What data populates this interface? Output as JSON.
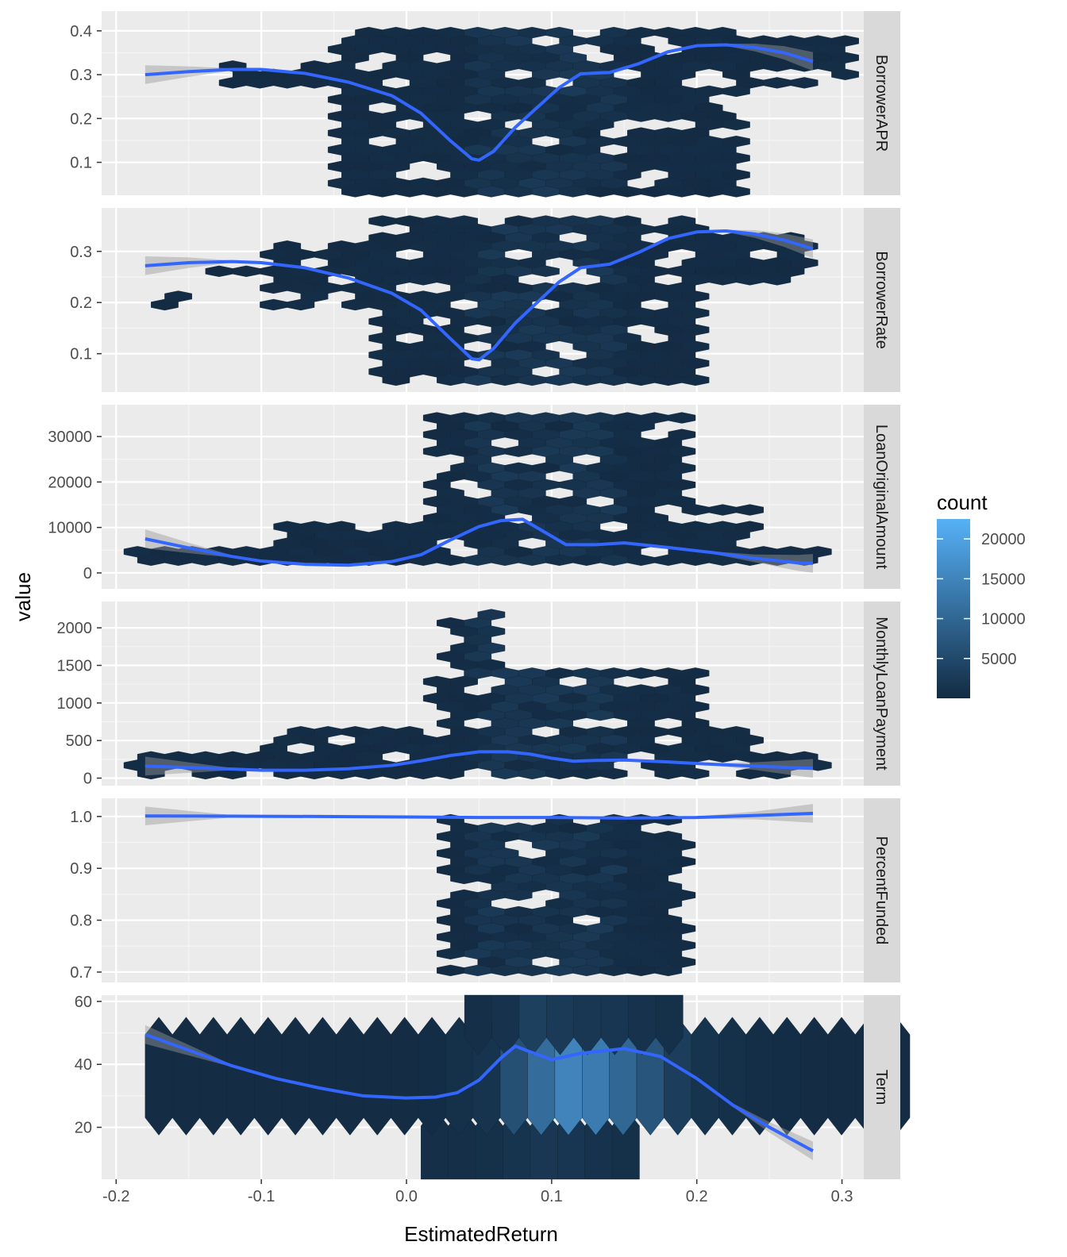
{
  "chart_data": {
    "type": "hexbin",
    "xlabel": "EstimatedReturn",
    "ylabel": "value",
    "x_ticks": [
      -0.2,
      -0.1,
      0.0,
      0.1,
      0.2,
      0.3
    ],
    "x_tick_labels": [
      "-0.2",
      "-0.1",
      "0.0",
      "0.1",
      "0.2",
      "0.3"
    ],
    "xlim": [
      -0.21,
      0.315
    ],
    "legend": {
      "title": "count",
      "position": "right",
      "ticks": [
        5000,
        10000,
        15000,
        20000
      ],
      "tick_labels": [
        "5000",
        "10000",
        "15000",
        "20000"
      ],
      "range": [
        1,
        22500
      ],
      "colors": [
        "#132b43",
        "#56b1f7"
      ]
    },
    "smooth_color": "#3366ff",
    "facets": [
      {
        "strip": "BorrowerAPR",
        "ylim": [
          0.025,
          0.445
        ],
        "y_ticks": [
          0.1,
          0.2,
          0.3,
          0.4
        ],
        "y_tick_labels": [
          "0.1",
          "0.2",
          "0.3",
          "0.4"
        ],
        "hex_region": [
          [
            -0.18,
            0.27,
            0.2,
            0.27
          ],
          [
            -0.12,
            0.27,
            0.29,
            0.32
          ],
          [
            -0.05,
            0.01,
            0.23,
            0.41
          ],
          [
            0.0,
            0.17,
            0.06,
            0.41
          ],
          [
            0.17,
            0.3,
            0.31,
            0.39
          ]
        ],
        "smooth_x": [
          -0.18,
          -0.15,
          -0.12,
          -0.1,
          -0.07,
          -0.04,
          -0.01,
          0.01,
          0.03,
          0.045,
          0.05,
          0.06,
          0.075,
          0.09,
          0.105,
          0.12,
          0.14,
          0.16,
          0.18,
          0.2,
          0.22,
          0.24,
          0.26,
          0.28
        ],
        "smooth_y": [
          0.3,
          0.307,
          0.312,
          0.312,
          0.303,
          0.283,
          0.252,
          0.212,
          0.15,
          0.108,
          0.105,
          0.125,
          0.18,
          0.225,
          0.27,
          0.302,
          0.305,
          0.325,
          0.352,
          0.366,
          0.368,
          0.362,
          0.35,
          0.33
        ]
      },
      {
        "strip": "BorrowerRate",
        "ylim": [
          0.025,
          0.385
        ],
        "y_ticks": [
          0.1,
          0.2,
          0.3
        ],
        "y_tick_labels": [
          "0.1",
          "0.2",
          "0.3"
        ],
        "hex_region": [
          [
            -0.19,
            0.18,
            -0.14,
            0.22
          ],
          [
            -0.14,
            0.25,
            -0.1,
            0.27
          ],
          [
            -0.1,
            0.18,
            0.0,
            0.32
          ],
          [
            -0.02,
            0.04,
            0.2,
            0.37
          ],
          [
            0.12,
            0.24,
            0.28,
            0.34
          ]
        ],
        "smooth_x": [
          -0.18,
          -0.15,
          -0.12,
          -0.1,
          -0.07,
          -0.04,
          -0.01,
          0.01,
          0.03,
          0.045,
          0.05,
          0.06,
          0.075,
          0.09,
          0.105,
          0.12,
          0.14,
          0.16,
          0.18,
          0.2,
          0.22,
          0.24,
          0.26,
          0.28
        ],
        "smooth_y": [
          0.272,
          0.278,
          0.28,
          0.278,
          0.268,
          0.248,
          0.218,
          0.185,
          0.13,
          0.09,
          0.088,
          0.11,
          0.16,
          0.2,
          0.24,
          0.268,
          0.275,
          0.298,
          0.325,
          0.338,
          0.34,
          0.334,
          0.322,
          0.305
        ]
      },
      {
        "strip": "LoanOriginalAmount",
        "ylim": [
          -3500,
          37000
        ],
        "y_ticks": [
          0,
          10000,
          20000,
          30000
        ],
        "y_tick_labels": [
          "0",
          "10000",
          "20000",
          "30000"
        ],
        "hex_region": [
          [
            -0.19,
            1000,
            0.29,
            6000
          ],
          [
            -0.1,
            6000,
            0.02,
            11000
          ],
          [
            0.02,
            6000,
            0.19,
            35000
          ],
          [
            0.19,
            3000,
            0.24,
            15000
          ]
        ],
        "smooth_x": [
          -0.18,
          -0.15,
          -0.12,
          -0.1,
          -0.07,
          -0.04,
          -0.01,
          0.01,
          0.03,
          0.05,
          0.065,
          0.08,
          0.095,
          0.11,
          0.13,
          0.15,
          0.18,
          0.21,
          0.24,
          0.27,
          0.28
        ],
        "smooth_y": [
          7500,
          5500,
          3600,
          2600,
          1900,
          1700,
          2500,
          4000,
          7200,
          10200,
          11500,
          11800,
          9000,
          6200,
          6200,
          6600,
          5600,
          4500,
          3200,
          2200,
          2100
        ]
      },
      {
        "strip": "MonthlyLoanPayment",
        "ylim": [
          -100,
          2350
        ],
        "y_ticks": [
          0,
          500,
          1000,
          1500,
          2000
        ],
        "y_tick_labels": [
          "0",
          "500",
          "1000",
          "1500",
          "2000"
        ],
        "hex_region": [
          [
            -0.19,
            0,
            0.29,
            300
          ],
          [
            -0.1,
            250,
            0.02,
            700
          ],
          [
            0.02,
            250,
            0.2,
            1450
          ],
          [
            0.03,
            1450,
            0.06,
            2250
          ],
          [
            0.19,
            250,
            0.24,
            700
          ]
        ],
        "smooth_x": [
          -0.18,
          -0.15,
          -0.12,
          -0.1,
          -0.07,
          -0.04,
          -0.01,
          0.01,
          0.03,
          0.05,
          0.07,
          0.085,
          0.1,
          0.115,
          0.13,
          0.15,
          0.18,
          0.21,
          0.24,
          0.27,
          0.28
        ],
        "smooth_y": [
          160,
          140,
          120,
          105,
          105,
          125,
          170,
          230,
          300,
          350,
          350,
          320,
          265,
          225,
          235,
          240,
          215,
          185,
          160,
          135,
          130
        ]
      },
      {
        "strip": "PercentFunded",
        "ylim": [
          0.68,
          1.035
        ],
        "y_ticks": [
          0.7,
          0.8,
          0.9,
          1.0
        ],
        "y_tick_labels": [
          "0.7",
          "0.8",
          "0.9",
          "1.0"
        ],
        "hex_region": [
          [
            -0.18,
            0.995,
            0.3,
            1.005
          ],
          [
            0.03,
            0.7,
            0.19,
            0.995
          ]
        ],
        "smooth_x": [
          -0.18,
          -0.12,
          -0.06,
          0.0,
          0.05,
          0.1,
          0.15,
          0.2,
          0.24,
          0.28
        ],
        "smooth_y": [
          1.001,
          1.0005,
          1.0,
          0.999,
          0.998,
          0.998,
          0.997,
          0.998,
          1.002,
          1.006
        ]
      },
      {
        "strip": "Term",
        "ylim": [
          3.5,
          62
        ],
        "y_ticks": [
          20,
          40,
          60
        ],
        "y_tick_labels": [
          "20",
          "40",
          "60"
        ],
        "term_rows": [
          {
            "y": 12,
            "x_from": 0.01,
            "x_to": 0.14,
            "counts": [
              600,
              700,
              800,
              1500,
              2000,
              1800,
              1200,
              800
            ]
          },
          {
            "y": 36,
            "x_from": -0.18,
            "x_to": 0.3,
            "counts": [
              300,
              300,
              300,
              300,
              300,
              300,
              300,
              300,
              300,
              300,
              400,
              800,
              1500,
              6000,
              11000,
              15000,
              13500,
              10000,
              7000,
              3000,
              1500,
              800,
              500,
              400,
              300,
              300,
              300,
              300
            ]
          },
          {
            "y": 60,
            "x_from": 0.04,
            "x_to": 0.19,
            "counts": [
              600,
              1200,
              3500,
              2500,
              2000,
              1800,
              1200,
              800
            ]
          }
        ],
        "smooth_x": [
          -0.18,
          -0.15,
          -0.12,
          -0.09,
          -0.06,
          -0.03,
          0.0,
          0.02,
          0.035,
          0.05,
          0.065,
          0.075,
          0.085,
          0.1,
          0.12,
          0.15,
          0.175,
          0.2,
          0.225,
          0.25,
          0.28
        ],
        "smooth_y": [
          49.5,
          44.5,
          39.5,
          35.5,
          32.5,
          30.0,
          29.3,
          29.6,
          31.0,
          35.0,
          42.0,
          45.8,
          44.0,
          41.5,
          43.5,
          45.0,
          42.5,
          35.5,
          27.0,
          20.0,
          12.5
        ]
      }
    ]
  }
}
